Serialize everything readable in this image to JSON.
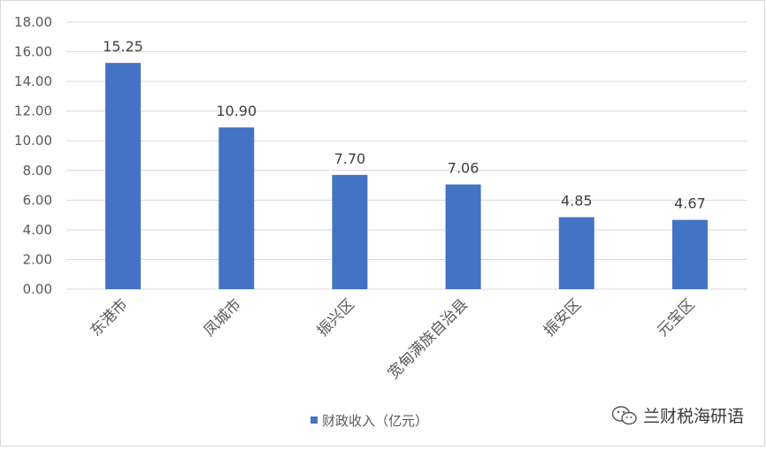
{
  "chart_data": {
    "type": "bar",
    "title": "",
    "xlabel": "",
    "ylabel": "",
    "categories": [
      "东港市",
      "凤城市",
      "振兴区",
      "宽甸满族自治县",
      "振安区",
      "元宝区"
    ],
    "series": [
      {
        "name": "财政收入（亿元）",
        "values": [
          15.25,
          10.9,
          7.7,
          7.06,
          4.85,
          4.67
        ],
        "color": "#4472c4"
      }
    ],
    "data_labels": [
      "15.25",
      "10.90",
      "7.70",
      "7.06",
      "4.85",
      "4.67"
    ],
    "ylim": [
      0,
      18
    ],
    "y_ticks": [
      "0.00",
      "2.00",
      "4.00",
      "6.00",
      "8.00",
      "10.00",
      "12.00",
      "14.00",
      "16.00",
      "18.00"
    ],
    "grid": true,
    "legend_position": "bottom"
  },
  "watermark": {
    "text": "兰财税海研语",
    "icon": "wechat-icon"
  },
  "colors": {
    "bar": "#4472c4",
    "grid": "#d9d9d9",
    "text": "#595959"
  }
}
